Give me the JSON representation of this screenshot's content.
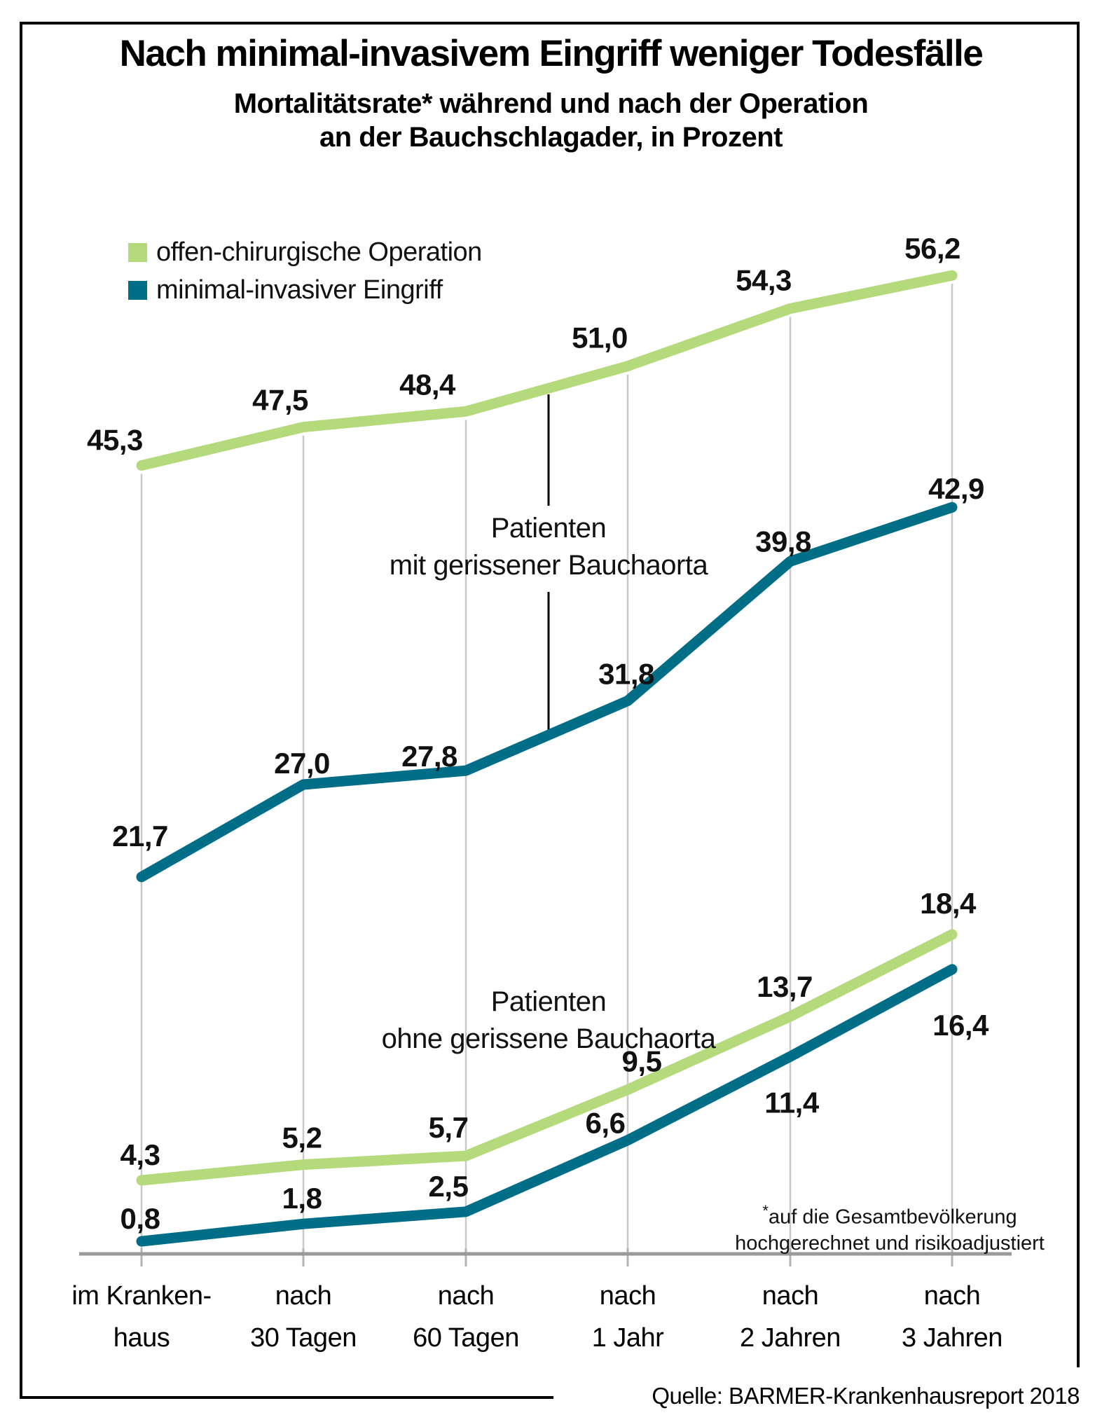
{
  "title": "Nach minimal-invasivem Eingriff weniger Todesfälle",
  "subtitle_lines": [
    "Mortalitätsrate* während und nach der Operation",
    "an der Bauchschlagader, in Prozent"
  ],
  "legend": {
    "items": [
      {
        "label": "offen-chirurgische Operation",
        "color": "#b5da7c"
      },
      {
        "label": "minimal-invasiver Eingriff",
        "color": "#006e87"
      }
    ]
  },
  "annotations": {
    "ruptured_lines": [
      "Patienten",
      "mit gerissener Bauchaorta"
    ],
    "non_ruptured_lines": [
      "Patienten",
      "ohne gerissene Bauchaorta"
    ]
  },
  "footnote_asterisk": "*",
  "footnote_lines": [
    "auf die Gesamtbevölkerung",
    "hochgerechnet und risikoadjustiert"
  ],
  "source": "Quelle: BARMER-Krankenhausreport 2018",
  "colors": {
    "green": "#b5da7c",
    "teal": "#006e87",
    "axis": "#9a9a9a",
    "grid": "#c9c9c9",
    "label_text": "#111111"
  },
  "chart_data": {
    "type": "line",
    "unit": "Prozent",
    "categories": [
      [
        "im Kranken-",
        "haus"
      ],
      [
        "nach",
        "30 Tagen"
      ],
      [
        "nach",
        "60 Tagen"
      ],
      [
        "nach",
        "1 Jahr"
      ],
      [
        "nach",
        "2 Jahren"
      ],
      [
        "nach",
        "3 Jahren"
      ]
    ],
    "series": [
      {
        "name": "offen-chirurgische Operation",
        "group": "Patienten mit gerissener Bauchaorta",
        "color": "#b5da7c",
        "values": [
          45.3,
          47.5,
          48.4,
          51.0,
          54.3,
          56.2
        ]
      },
      {
        "name": "minimal-invasiver Eingriff",
        "group": "Patienten mit gerissener Bauchaorta",
        "color": "#006e87",
        "values": [
          21.7,
          27.0,
          27.8,
          31.8,
          39.8,
          42.9
        ]
      },
      {
        "name": "offen-chirurgische Operation",
        "group": "Patienten ohne gerissene Bauchaorta",
        "color": "#b5da7c",
        "values": [
          4.3,
          5.2,
          5.7,
          9.5,
          13.7,
          18.4
        ]
      },
      {
        "name": "minimal-invasiver Eingriff",
        "group": "Patienten ohne gerissene Bauchaorta",
        "color": "#006e87",
        "values": [
          0.8,
          1.8,
          2.5,
          6.6,
          11.4,
          16.4
        ]
      }
    ],
    "title": "Nach minimal-invasivem Eingriff weniger Todesfälle",
    "xlabel": "",
    "ylabel": "Mortalitätsrate in Prozent",
    "ylim": [
      0,
      60
    ],
    "grid": "vertical",
    "legend_position": "top-left",
    "decimal_separator": ","
  }
}
